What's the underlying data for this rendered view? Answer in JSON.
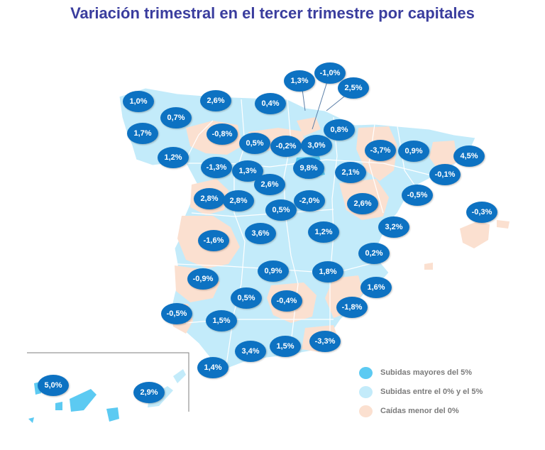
{
  "title": "Variación trimestral en el tercer trimestre por capitales",
  "colors": {
    "above5": "#5ccaf2",
    "between0and5": "#c3ebfa",
    "below0": "#fbe0d0",
    "bubble": "#0d72c2",
    "title": "#3a3d9e"
  },
  "legend": [
    {
      "label": "Subidas mayores del 5%",
      "color": "#5ccaf2"
    },
    {
      "label": "Subidas entre el 0% y el 5%",
      "color": "#c3ebfa"
    },
    {
      "label": "Caídas menor del 0%",
      "color": "#fbe0d0"
    }
  ],
  "capitals": [
    {
      "label": "1,0%",
      "value": 1.0
    },
    {
      "label": "2,6%",
      "value": 2.6
    },
    {
      "label": "0,4%",
      "value": 0.4
    },
    {
      "label": "1,3%",
      "value": 1.3
    },
    {
      "label": "-1,0%",
      "value": -1.0
    },
    {
      "label": "2,5%",
      "value": 2.5
    },
    {
      "label": "0,7%",
      "value": 0.7
    },
    {
      "label": "1,7%",
      "value": 1.7
    },
    {
      "label": "-0,8%",
      "value": -0.8
    },
    {
      "label": "0,5%",
      "value": 0.5
    },
    {
      "label": "-0,2%",
      "value": -0.2
    },
    {
      "label": "3,0%",
      "value": 3.0
    },
    {
      "label": "0,8%",
      "value": 0.8
    },
    {
      "label": "1,2%",
      "value": 1.2
    },
    {
      "label": "-1,3%",
      "value": -1.3
    },
    {
      "label": "1,3%",
      "value": 1.3
    },
    {
      "label": "9,8%",
      "value": 9.8
    },
    {
      "label": "2,1%",
      "value": 2.1
    },
    {
      "label": "-3,7%",
      "value": -3.7
    },
    {
      "label": "0,9%",
      "value": 0.9
    },
    {
      "label": "4,5%",
      "value": 4.5
    },
    {
      "label": "-0,1%",
      "value": -0.1
    },
    {
      "label": "2,6%",
      "value": 2.6
    },
    {
      "label": "-0,5%",
      "value": -0.5
    },
    {
      "label": "2,8%",
      "value": 2.8
    },
    {
      "label": "2,8%",
      "value": 2.8
    },
    {
      "label": "0,5%",
      "value": 0.5
    },
    {
      "label": "-2,0%",
      "value": -2.0
    },
    {
      "label": "2,6%",
      "value": 2.6
    },
    {
      "label": "-0,3%",
      "value": -0.3
    },
    {
      "label": "-1,6%",
      "value": -1.6
    },
    {
      "label": "3,6%",
      "value": 3.6
    },
    {
      "label": "1,2%",
      "value": 1.2
    },
    {
      "label": "3,2%",
      "value": 3.2
    },
    {
      "label": "0,2%",
      "value": 0.2
    },
    {
      "label": "-0,9%",
      "value": -0.9
    },
    {
      "label": "0,9%",
      "value": 0.9
    },
    {
      "label": "1,8%",
      "value": 1.8
    },
    {
      "label": "1,6%",
      "value": 1.6
    },
    {
      "label": "0,5%",
      "value": 0.5
    },
    {
      "label": "-0,4%",
      "value": -0.4
    },
    {
      "label": "-1,8%",
      "value": -1.8
    },
    {
      "label": "-0,5%",
      "value": -0.5
    },
    {
      "label": "1,5%",
      "value": 1.5
    },
    {
      "label": "3,4%",
      "value": 3.4
    },
    {
      "label": "1,5%",
      "value": 1.5
    },
    {
      "label": "-3,3%",
      "value": -3.3
    },
    {
      "label": "1,4%",
      "value": 1.4
    },
    {
      "label": "5,0%",
      "value": 5.0
    },
    {
      "label": "2,9%",
      "value": 2.9
    }
  ]
}
